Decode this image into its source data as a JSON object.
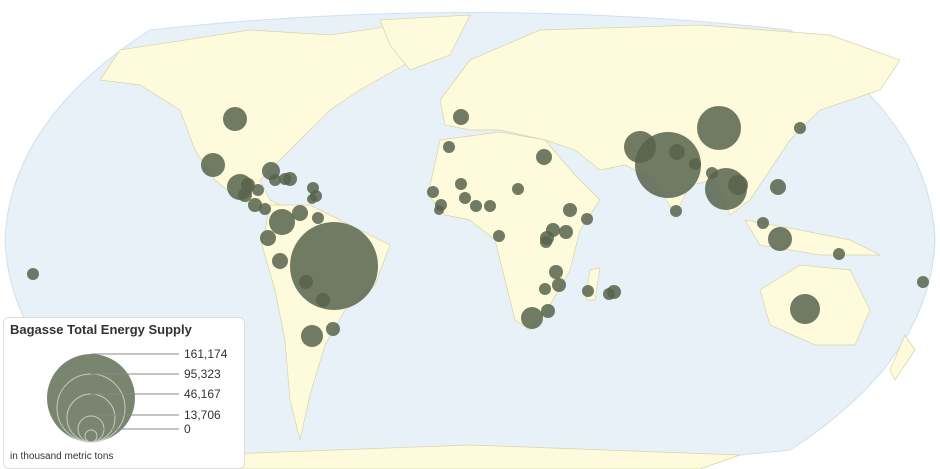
{
  "legend": {
    "title": "Bagasse Total Energy Supply",
    "unit_note": "in thousand metric tons",
    "values": [
      "161,174",
      "95,323",
      "46,167",
      "13,706",
      "0"
    ]
  },
  "colors": {
    "ocean": "#e8f1f8",
    "land": "#fdfbdc",
    "bubble": "#58634c",
    "legend_fill": "#7a8570"
  }
}
